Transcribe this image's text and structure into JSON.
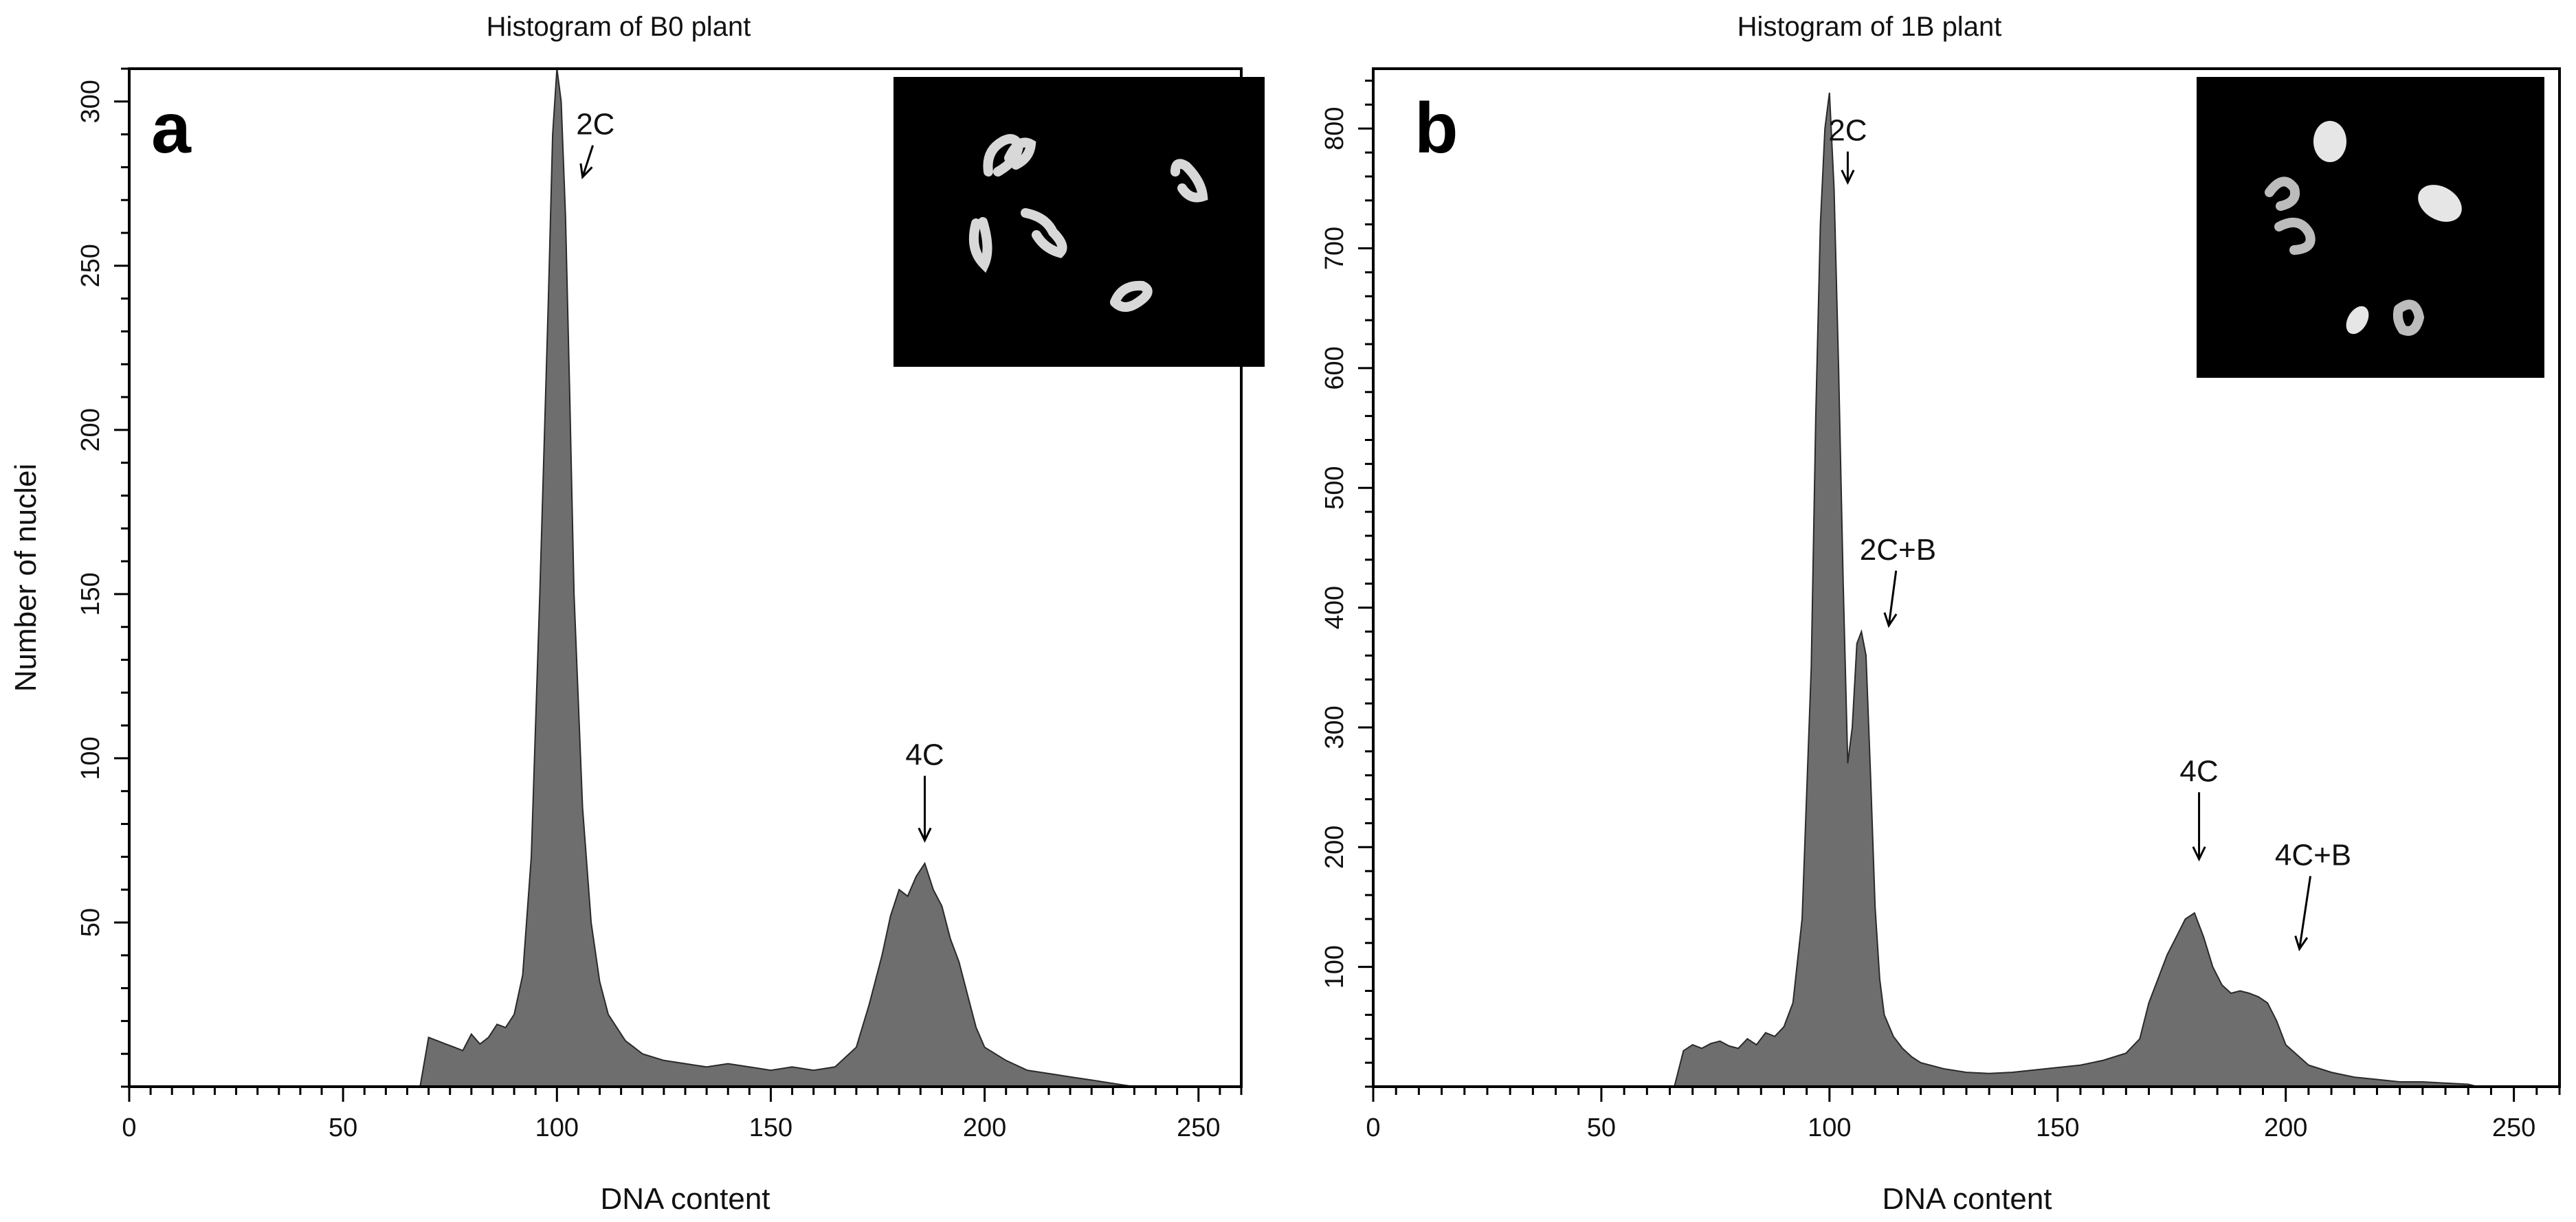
{
  "chart_data": [
    {
      "type": "area",
      "panel": "a",
      "title": "Histogram of B0 plant",
      "xlabel": "DNA content",
      "ylabel": "Number of nuclei",
      "xlim": [
        0,
        260
      ],
      "ylim": [
        0,
        310
      ],
      "x_ticks": [
        0,
        50,
        100,
        150,
        200,
        250
      ],
      "y_ticks": [
        50,
        100,
        150,
        200,
        250,
        300
      ],
      "fill_color": "#6e6e6e",
      "grid": false,
      "legend": "none",
      "inset": "fluorescent chromosome micrograph (black background)",
      "annotations": [
        {
          "text": "2C",
          "x": 109,
          "y": 290,
          "arrow_to": [
            106,
            277
          ]
        },
        {
          "text": "4C",
          "x": 186,
          "y": 98,
          "arrow_to": [
            186,
            75
          ]
        }
      ],
      "x": [
        68,
        70,
        72,
        74,
        76,
        78,
        80,
        82,
        84,
        86,
        88,
        90,
        92,
        94,
        96,
        98,
        99,
        100,
        101,
        102,
        103,
        104,
        106,
        108,
        110,
        112,
        114,
        116,
        118,
        120,
        125,
        130,
        135,
        140,
        145,
        150,
        155,
        160,
        165,
        170,
        173,
        176,
        178,
        180,
        182,
        184,
        186,
        188,
        190,
        192,
        194,
        196,
        198,
        200,
        205,
        210,
        215,
        220,
        225,
        230,
        235,
        236
      ],
      "y": [
        0,
        15,
        14,
        13,
        12,
        11,
        16,
        13,
        15,
        19,
        18,
        22,
        34,
        70,
        150,
        240,
        290,
        310,
        300,
        265,
        210,
        150,
        85,
        50,
        32,
        22,
        18,
        14,
        12,
        10,
        8,
        7,
        6,
        7,
        6,
        5,
        6,
        5,
        6,
        12,
        25,
        40,
        52,
        60,
        58,
        64,
        68,
        60,
        55,
        45,
        38,
        28,
        18,
        12,
        8,
        5,
        4,
        3,
        2,
        1,
        0,
        0
      ]
    },
    {
      "type": "area",
      "panel": "b",
      "title": "Histogram of 1B plant",
      "xlabel": "DNA content",
      "ylabel": "",
      "xlim": [
        0,
        260
      ],
      "ylim": [
        0,
        850
      ],
      "x_ticks": [
        0,
        50,
        100,
        150,
        200,
        250
      ],
      "y_ticks": [
        100,
        200,
        300,
        400,
        500,
        600,
        700,
        800
      ],
      "fill_color": "#6e6e6e",
      "grid": false,
      "legend": "none",
      "inset": "fluorescent chromosome micrograph (black background)",
      "annotations": [
        {
          "text": "2C",
          "x": 104,
          "y": 790,
          "arrow_to": [
            104,
            755
          ]
        },
        {
          "text": "2C+B",
          "x": 115,
          "y": 440,
          "arrow_to": [
            113,
            385
          ]
        },
        {
          "text": "4C",
          "x": 181,
          "y": 255,
          "arrow_to": [
            181,
            190
          ]
        },
        {
          "text": "4C+B",
          "x": 206,
          "y": 185,
          "arrow_to": [
            203,
            115
          ]
        }
      ],
      "x": [
        66,
        68,
        70,
        72,
        74,
        76,
        78,
        80,
        82,
        84,
        86,
        88,
        90,
        92,
        94,
        96,
        97,
        98,
        99,
        100,
        101,
        102,
        103,
        104,
        105,
        106,
        107,
        108,
        109,
        110,
        111,
        112,
        114,
        116,
        118,
        120,
        125,
        130,
        135,
        140,
        145,
        150,
        155,
        160,
        165,
        168,
        170,
        172,
        174,
        176,
        178,
        180,
        182,
        184,
        186,
        188,
        190,
        192,
        194,
        196,
        198,
        200,
        205,
        210,
        215,
        220,
        225,
        230,
        235,
        240,
        242
      ],
      "y": [
        0,
        30,
        35,
        32,
        36,
        38,
        34,
        32,
        40,
        35,
        45,
        42,
        50,
        70,
        140,
        350,
        560,
        720,
        800,
        830,
        750,
        600,
        420,
        270,
        300,
        370,
        380,
        360,
        260,
        150,
        90,
        60,
        42,
        32,
        25,
        20,
        15,
        12,
        11,
        12,
        14,
        16,
        18,
        22,
        28,
        40,
        70,
        90,
        110,
        125,
        140,
        145,
        125,
        100,
        85,
        78,
        80,
        78,
        75,
        70,
        55,
        35,
        18,
        12,
        8,
        6,
        4,
        4,
        3,
        2,
        0
      ]
    }
  ]
}
